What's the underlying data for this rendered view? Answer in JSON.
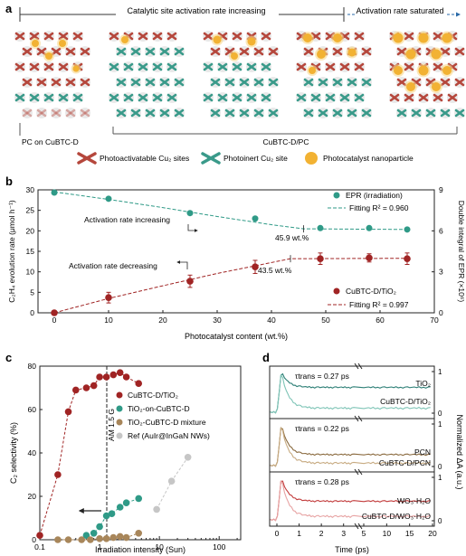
{
  "panel_a": {
    "letter": "a",
    "rate_increasing": "Catalytic site activation rate increasing",
    "rate_saturated": "Activation rate saturated",
    "label_left": "PC on CuBTC-D",
    "label_right": "CuBTC-D/PC",
    "legend": [
      "Photoactivatable Cu₂ sites",
      "Photoinert Cu₂ site",
      "Photocatalyst nanoparticle"
    ],
    "colors": {
      "red": "#b5473c",
      "teal": "#3a9a8a",
      "gold": "#f2b233"
    }
  },
  "panel_b": {
    "letter": "b",
    "xlabel": "Photocatalyst content (wt.%)",
    "ylabel_left": "C₂H₄ evolution rate (μmol h⁻¹)",
    "ylabel_right": "Double integral of EPR (×10⁶)",
    "xticks": [
      "0",
      "10",
      "20",
      "30",
      "40",
      "50",
      "60",
      "70"
    ],
    "yticks_left": [
      "0",
      "5",
      "10",
      "15",
      "20",
      "25",
      "30"
    ],
    "yticks_right": [
      "0",
      "3",
      "6",
      "9"
    ],
    "ann_increase": "Activation rate increasing",
    "ann_decrease": "Activation rate decreasing",
    "ann_459": "45.9 wt.%",
    "ann_435": "43.5 wt.%",
    "legend_epr": "EPR (irradiation)",
    "legend_fit_epr": "Fitting R² = 0.960",
    "legend_cubtc": "CuBTC-D/TiO₂",
    "legend_fit_cubtc": "Fitting R² = 0.997"
  },
  "panel_c": {
    "letter": "c",
    "xlabel": "Irradiation intensity (Sun)",
    "ylabel": "C₂ selectivity (%)",
    "xticks": [
      "0.1",
      "1",
      "10",
      "100"
    ],
    "yticks": [
      "0",
      "20",
      "40",
      "60",
      "80"
    ],
    "am_label": "AM 1.5 G",
    "legend": [
      "CuBTC-D/TiO₂",
      "TiO₂-on-CuBTC-D",
      "TiO₂-CuBTC-D mixture",
      "Ref (AuIr@InGaN NWs)"
    ]
  },
  "panel_d": {
    "letter": "d",
    "xlabel": "Time (ps)",
    "ylabel": "Normalized ΔA (a.u.)",
    "xticks": [
      "0",
      "1",
      "2",
      "3",
      "5",
      "10",
      "15",
      "20"
    ],
    "rows": [
      {
        "tau": "τtrans = 0.27 ps",
        "top": "TiO₂",
        "bottom": "CuBTC-D/TiO₂"
      },
      {
        "tau": "τtrans = 0.22 ps",
        "top": "PCN",
        "bottom": "CuBTC-D/PCN"
      },
      {
        "tau": "τtrans = 0.28 ps",
        "top": "WO₃·H₂O",
        "bottom": "CuBTC-D/WO₃·H₂O"
      }
    ]
  },
  "chart_data": [
    {
      "type": "line",
      "panel": "b",
      "xlabel": "Photocatalyst content (wt.%)",
      "ylabel": "C₂H₄ evolution rate (μmol h⁻¹)",
      "xlim": [
        -3,
        70
      ],
      "ylim": [
        0,
        30
      ],
      "y2lim": [
        0,
        9
      ],
      "series": [
        {
          "name": "EPR (irradiation)",
          "axis": "right",
          "color": "#2f9a87",
          "x": [
            0,
            10,
            25,
            37,
            49,
            58,
            65
          ],
          "y": [
            8.8,
            8.35,
            7.3,
            6.9,
            6.2,
            6.2,
            6.1
          ]
        },
        {
          "name": "CuBTC-D/TiO₂",
          "axis": "left",
          "color": "#a02424",
          "x": [
            0,
            10,
            25,
            37,
            49,
            58,
            65
          ],
          "y": [
            0,
            3.7,
            7.7,
            11.2,
            13.2,
            13.4,
            13.2
          ],
          "err": [
            0.5,
            1.3,
            1.5,
            1.6,
            1.4,
            1.0,
            1.4
          ]
        }
      ]
    },
    {
      "type": "scatter",
      "panel": "c",
      "xlabel": "Irradiation intensity (Sun)",
      "ylabel": "C₂ selectivity (%)",
      "xscale": "log",
      "xlim": [
        0.1,
        100
      ],
      "ylim": [
        0,
        80
      ],
      "series": [
        {
          "name": "CuBTC-D/TiO₂",
          "color": "#a02424",
          "x": [
            0.1,
            0.2,
            0.3,
            0.4,
            0.6,
            0.8,
            1,
            1.3,
            1.7,
            2.2,
            2.8,
            4.5
          ],
          "y": [
            2,
            30,
            59,
            69,
            70,
            71,
            75,
            75,
            76,
            77,
            75,
            72
          ]
        },
        {
          "name": "TiO₂-on-CuBTC-D",
          "color": "#2f9a87",
          "x": [
            0.6,
            0.8,
            1,
            1.3,
            1.6,
            2.2,
            2.8,
            4.5
          ],
          "y": [
            2,
            3,
            6,
            11,
            12,
            15,
            17,
            19
          ]
        },
        {
          "name": "TiO₂-CuBTC-D mixture",
          "color": "#a8865a",
          "x": [
            0.2,
            0.3,
            0.5,
            0.7,
            1,
            1.3,
            1.7,
            2.2,
            2.8,
            4.5
          ],
          "y": [
            0,
            0,
            0,
            0,
            0.5,
            0.5,
            1,
            1.5,
            1,
            3
          ]
        },
        {
          "name": "Ref (AuIr@InGaN NWs)",
          "color": "#c6c6c6",
          "x": [
            9,
            16,
            30
          ],
          "y": [
            14,
            27,
            38
          ]
        }
      ]
    }
  ]
}
